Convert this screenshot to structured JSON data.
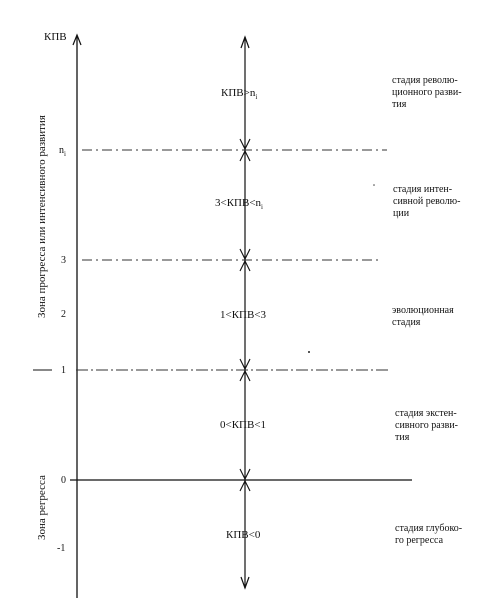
{
  "axis_label": "КПВ",
  "ticks": [
    {
      "text": "n",
      "sub": "i"
    },
    {
      "text": "3"
    },
    {
      "text": "2"
    },
    {
      "text": "1"
    },
    {
      "text": "0"
    },
    {
      "text": "-1"
    }
  ],
  "zones": {
    "progress": "Зона прогресса или интенсивного развития",
    "regress": "Зона регресса"
  },
  "conditions": [
    {
      "text": "КПВ>n",
      "sub": "i"
    },
    {
      "text": "3<КПВ<n",
      "sub": "i"
    },
    {
      "text": "1<КПВ<3"
    },
    {
      "text": "0<КПВ<1"
    },
    {
      "text": "КПВ<0"
    }
  ],
  "stages": [
    [
      "стадия револю-",
      "ционного разви-",
      "тия"
    ],
    [
      "стадия интен-",
      "сивной револю-",
      "ции"
    ],
    [
      "эволюционная",
      "стадия"
    ],
    [
      "стадия экстен-",
      "сивного разви-",
      "тия"
    ],
    [
      "стадия глубоко-",
      "го регресса"
    ]
  ]
}
